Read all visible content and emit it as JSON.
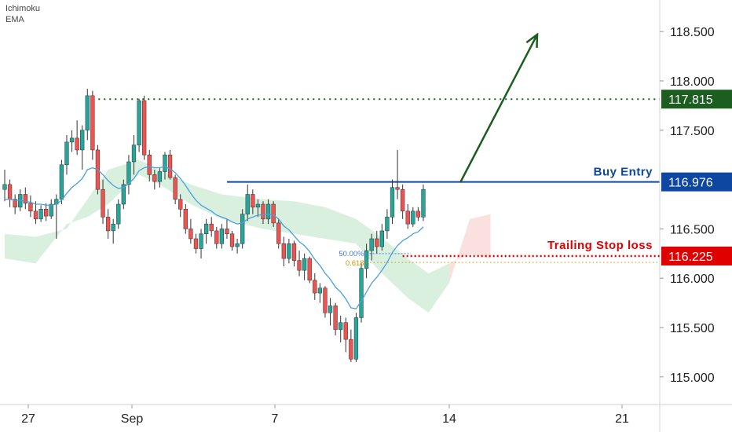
{
  "indicators": [
    "Ichimoku",
    "EMA"
  ],
  "colors": {
    "up": "#26a69a",
    "down": "#ef5350",
    "wick": "#333333",
    "resistance": "#1b5e20",
    "entry": "#0d47a1",
    "stop": "#e00000",
    "ema": "#4a9fe0",
    "cloud_green": "#b9e3c4",
    "cloud_red": "#f6c6c4",
    "fib50": "#4a7fd6",
    "fib618": "#c49a00"
  },
  "chart_data": {
    "type": "candlestick",
    "x_ticks": [
      "27",
      "Sep",
      "7",
      "14",
      "21"
    ],
    "y_ticks": [
      "118.500",
      "118.000",
      "117.500",
      "116.500",
      "116.000",
      "115.500",
      "115.000"
    ],
    "ylim": [
      114.72,
      118.82
    ],
    "levels": [
      {
        "name": "resistance",
        "value": 117.815,
        "label": "117.815",
        "style": "dotted"
      },
      {
        "name": "entry",
        "value": 116.976,
        "label": "116.976",
        "annotation": "Buy Entry",
        "style": "solid"
      },
      {
        "name": "stop",
        "value": 116.225,
        "label": "116.225",
        "annotation": "Trailing Stop loss",
        "style": "dotted"
      }
    ],
    "fibonacci": [
      {
        "label": "50.00%",
        "value": 116.25
      },
      {
        "label": "0.618",
        "value": 116.16
      }
    ],
    "arrow": {
      "from": [
        116.97
      ],
      "to": [
        118.47
      ]
    },
    "candles": [
      [
        116.9,
        117.1,
        116.78,
        116.95
      ],
      [
        116.95,
        117.0,
        116.72,
        116.8
      ],
      [
        116.8,
        116.85,
        116.65,
        116.72
      ],
      [
        116.72,
        116.9,
        116.68,
        116.85
      ],
      [
        116.85,
        116.92,
        116.7,
        116.76
      ],
      [
        116.76,
        116.84,
        116.62,
        116.68
      ],
      [
        116.68,
        116.78,
        116.55,
        116.6
      ],
      [
        116.6,
        116.74,
        116.57,
        116.7
      ],
      [
        116.7,
        116.76,
        116.58,
        116.63
      ],
      [
        116.63,
        116.8,
        116.6,
        116.75
      ],
      [
        116.75,
        116.85,
        116.4,
        116.8
      ],
      [
        116.8,
        117.2,
        116.75,
        117.15
      ],
      [
        117.15,
        117.45,
        117.05,
        117.38
      ],
      [
        117.38,
        117.5,
        117.28,
        117.42
      ],
      [
        117.42,
        117.6,
        117.25,
        117.3
      ],
      [
        117.3,
        117.55,
        117.1,
        117.5
      ],
      [
        117.5,
        117.92,
        117.4,
        117.85
      ],
      [
        117.85,
        117.9,
        117.2,
        117.3
      ],
      [
        117.3,
        117.35,
        116.85,
        116.9
      ],
      [
        116.9,
        117.0,
        116.55,
        116.62
      ],
      [
        116.62,
        116.7,
        116.4,
        116.48
      ],
      [
        116.48,
        116.6,
        116.35,
        116.55
      ],
      [
        116.55,
        116.8,
        116.5,
        116.75
      ],
      [
        116.75,
        117.0,
        116.7,
        116.95
      ],
      [
        116.95,
        117.25,
        116.85,
        117.18
      ],
      [
        117.18,
        117.45,
        117.05,
        117.35
      ],
      [
        117.35,
        117.82,
        117.28,
        117.8
      ],
      [
        117.8,
        117.85,
        117.2,
        117.25
      ],
      [
        117.25,
        117.3,
        116.98,
        117.05
      ],
      [
        117.05,
        117.1,
        116.9,
        116.98
      ],
      [
        116.98,
        117.12,
        116.92,
        117.08
      ],
      [
        117.08,
        117.28,
        117.0,
        117.25
      ],
      [
        117.25,
        117.3,
        117.0,
        117.02
      ],
      [
        117.02,
        117.05,
        116.75,
        116.8
      ],
      [
        116.8,
        116.85,
        116.62,
        116.7
      ],
      [
        116.7,
        116.75,
        116.45,
        116.5
      ],
      [
        116.5,
        116.6,
        116.35,
        116.4
      ],
      [
        116.4,
        116.45,
        116.25,
        116.3
      ],
      [
        116.3,
        116.5,
        116.2,
        116.45
      ],
      [
        116.45,
        116.6,
        116.35,
        116.55
      ],
      [
        116.55,
        116.62,
        116.42,
        116.48
      ],
      [
        116.48,
        116.52,
        116.3,
        116.35
      ],
      [
        116.35,
        116.55,
        116.3,
        116.5
      ],
      [
        116.5,
        116.6,
        116.4,
        116.45
      ],
      [
        116.45,
        116.48,
        116.28,
        116.32
      ],
      [
        116.32,
        116.4,
        116.25,
        116.35
      ],
      [
        116.35,
        116.7,
        116.3,
        116.65
      ],
      [
        116.65,
        116.95,
        116.58,
        116.85
      ],
      [
        116.85,
        116.9,
        116.65,
        116.72
      ],
      [
        116.72,
        116.8,
        116.62,
        116.75
      ],
      [
        116.75,
        116.78,
        116.55,
        116.6
      ],
      [
        116.6,
        116.8,
        116.55,
        116.75
      ],
      [
        116.75,
        116.78,
        116.52,
        116.56
      ],
      [
        116.56,
        116.6,
        116.3,
        116.35
      ],
      [
        116.35,
        116.42,
        116.12,
        116.2
      ],
      [
        116.2,
        116.4,
        116.15,
        116.35
      ],
      [
        116.35,
        116.38,
        116.12,
        116.18
      ],
      [
        116.18,
        116.28,
        116.02,
        116.08
      ],
      [
        116.08,
        116.25,
        115.98,
        116.2
      ],
      [
        116.2,
        116.22,
        115.95,
        115.98
      ],
      [
        115.98,
        116.05,
        115.78,
        115.85
      ],
      [
        115.85,
        115.95,
        115.75,
        115.9
      ],
      [
        115.9,
        115.92,
        115.6,
        115.65
      ],
      [
        115.65,
        115.8,
        115.52,
        115.72
      ],
      [
        115.72,
        115.75,
        115.42,
        115.48
      ],
      [
        115.48,
        115.62,
        115.35,
        115.55
      ],
      [
        115.55,
        115.6,
        115.25,
        115.38
      ],
      [
        115.38,
        115.48,
        115.15,
        115.18
      ],
      [
        115.18,
        115.65,
        115.15,
        115.6
      ],
      [
        115.6,
        116.15,
        115.55,
        116.1
      ],
      [
        116.1,
        116.35,
        116.0,
        116.28
      ],
      [
        116.28,
        116.45,
        116.18,
        116.4
      ],
      [
        116.4,
        116.48,
        116.25,
        116.32
      ],
      [
        116.32,
        116.55,
        116.28,
        116.48
      ],
      [
        116.48,
        116.7,
        116.4,
        116.62
      ],
      [
        116.62,
        117.0,
        116.55,
        116.92
      ],
      [
        116.92,
        117.3,
        116.8,
        116.9
      ],
      [
        116.9,
        116.95,
        116.6,
        116.68
      ],
      [
        116.68,
        116.75,
        116.5,
        116.55
      ],
      [
        116.55,
        116.72,
        116.52,
        116.68
      ],
      [
        116.68,
        116.72,
        116.58,
        116.62
      ],
      [
        116.62,
        116.95,
        116.58,
        116.9
      ]
    ],
    "ema": [
      116.8,
      116.8,
      116.79,
      116.79,
      116.78,
      116.77,
      116.75,
      116.75,
      116.74,
      116.74,
      116.75,
      116.79,
      116.86,
      116.92,
      116.96,
      117.01,
      117.1,
      117.12,
      117.1,
      117.05,
      116.99,
      116.94,
      116.91,
      116.92,
      116.96,
      117.01,
      117.09,
      117.12,
      117.13,
      117.12,
      117.12,
      117.13,
      117.11,
      117.07,
      117.01,
      116.94,
      116.86,
      116.79,
      116.74,
      116.71,
      116.68,
      116.64,
      116.62,
      116.6,
      116.57,
      116.55,
      116.56,
      116.6,
      116.62,
      116.64,
      116.64,
      116.65,
      116.64,
      116.6,
      116.53,
      116.49,
      116.43,
      116.37,
      116.33,
      116.27,
      116.19,
      116.13,
      116.05,
      115.99,
      115.91,
      115.86,
      115.79,
      115.7,
      115.69,
      115.77,
      115.86,
      115.95,
      116.01,
      116.08,
      116.16,
      116.26,
      116.33,
      116.38,
      116.41,
      116.45,
      116.47,
      116.52
    ],
    "cloud": [
      {
        "x": 0,
        "a": 116.45,
        "b": 116.2
      },
      {
        "x": 6,
        "a": 116.42,
        "b": 116.15
      },
      {
        "x": 12,
        "a": 116.5,
        "b": 116.55
      },
      {
        "x": 16,
        "a": 116.8,
        "b": 116.62
      },
      {
        "x": 20,
        "a": 117.1,
        "b": 116.75
      },
      {
        "x": 26,
        "a": 117.2,
        "b": 117.05
      },
      {
        "x": 30,
        "a": 117.1,
        "b": 116.95
      },
      {
        "x": 36,
        "a": 116.95,
        "b": 116.75
      },
      {
        "x": 42,
        "a": 116.85,
        "b": 116.6
      },
      {
        "x": 50,
        "a": 116.8,
        "b": 116.5
      },
      {
        "x": 56,
        "a": 116.78,
        "b": 116.45
      },
      {
        "x": 62,
        "a": 116.72,
        "b": 116.4
      },
      {
        "x": 68,
        "a": 116.6,
        "b": 116.35
      },
      {
        "x": 72,
        "a": 116.45,
        "b": 116.1
      },
      {
        "x": 78,
        "a": 116.2,
        "b": 115.8
      },
      {
        "x": 82,
        "a": 116.05,
        "b": 115.65
      },
      {
        "x": 86,
        "a": 116.15,
        "b": 115.95
      },
      {
        "x": 90,
        "a": 116.25,
        "b": 116.6
      },
      {
        "x": 94,
        "a": 116.2,
        "b": 116.65
      }
    ]
  }
}
